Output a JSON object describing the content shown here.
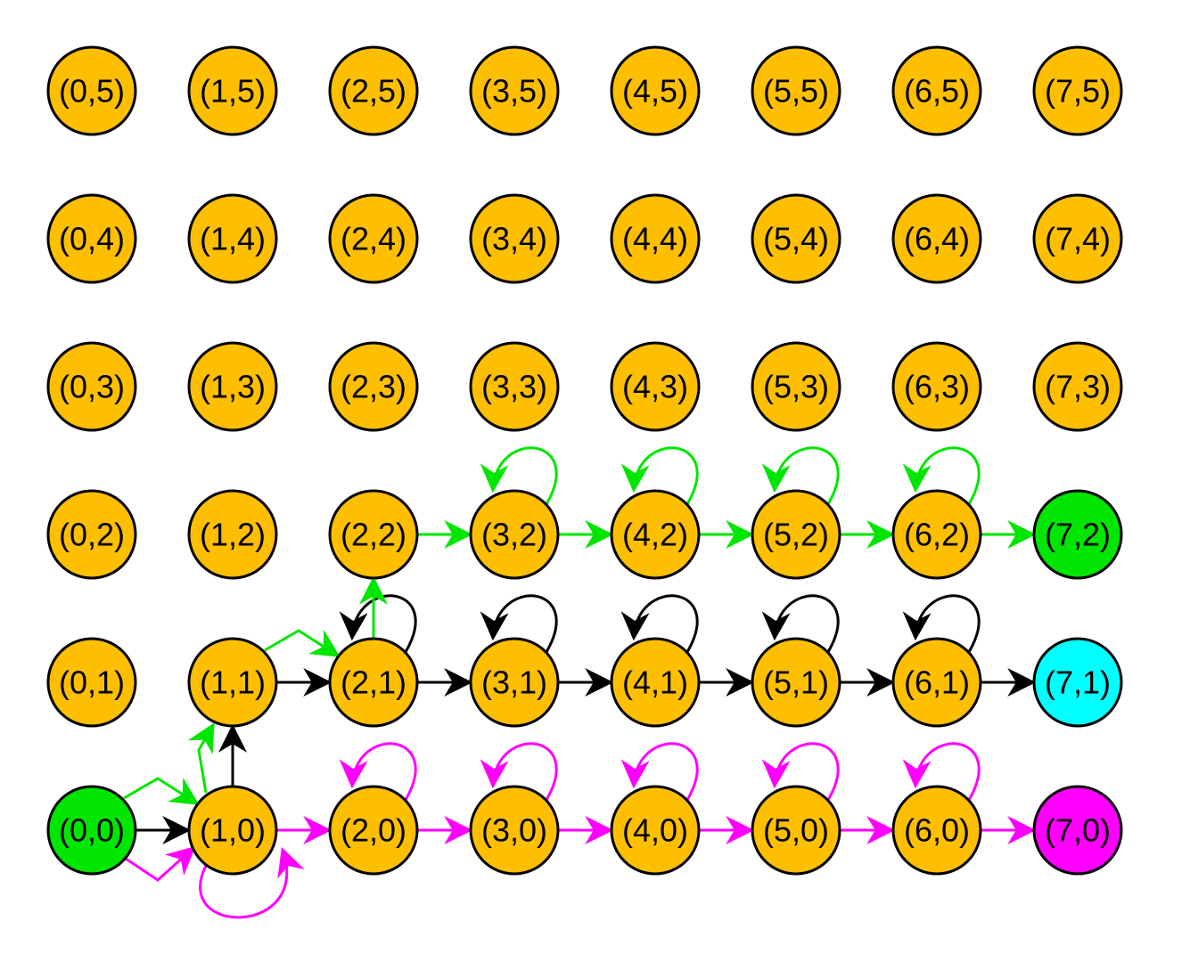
{
  "colors": {
    "node_default": "#FDBF00",
    "start": "#00E600",
    "goal_green": "#00E600",
    "goal_cyan": "#00FFFF",
    "goal_magenta": "#FF00FF",
    "path_black": "#000000",
    "path_green": "#00E600",
    "path_magenta": "#FF00FF"
  },
  "grid": {
    "columns": 8,
    "rows": 6
  },
  "nodes": [
    {
      "id": "0,5",
      "label": "(0,5)",
      "col": 0,
      "row": 5,
      "fill": "node_default"
    },
    {
      "id": "1,5",
      "label": "(1,5)",
      "col": 1,
      "row": 5,
      "fill": "node_default"
    },
    {
      "id": "2,5",
      "label": "(2,5)",
      "col": 2,
      "row": 5,
      "fill": "node_default"
    },
    {
      "id": "3,5",
      "label": "(3,5)",
      "col": 3,
      "row": 5,
      "fill": "node_default"
    },
    {
      "id": "4,5",
      "label": "(4,5)",
      "col": 4,
      "row": 5,
      "fill": "node_default"
    },
    {
      "id": "5,5",
      "label": "(5,5)",
      "col": 5,
      "row": 5,
      "fill": "node_default"
    },
    {
      "id": "6,5",
      "label": "(6,5)",
      "col": 6,
      "row": 5,
      "fill": "node_default"
    },
    {
      "id": "7,5",
      "label": "(7,5)",
      "col": 7,
      "row": 5,
      "fill": "node_default"
    },
    {
      "id": "0,4",
      "label": "(0,4)",
      "col": 0,
      "row": 4,
      "fill": "node_default"
    },
    {
      "id": "1,4",
      "label": "(1,4)",
      "col": 1,
      "row": 4,
      "fill": "node_default"
    },
    {
      "id": "2,4",
      "label": "(2,4)",
      "col": 2,
      "row": 4,
      "fill": "node_default"
    },
    {
      "id": "3,4",
      "label": "(3,4)",
      "col": 3,
      "row": 4,
      "fill": "node_default"
    },
    {
      "id": "4,4",
      "label": "(4,4)",
      "col": 4,
      "row": 4,
      "fill": "node_default"
    },
    {
      "id": "5,4",
      "label": "(5,4)",
      "col": 5,
      "row": 4,
      "fill": "node_default"
    },
    {
      "id": "6,4",
      "label": "(6,4)",
      "col": 6,
      "row": 4,
      "fill": "node_default"
    },
    {
      "id": "7,4",
      "label": "(7,4)",
      "col": 7,
      "row": 4,
      "fill": "node_default"
    },
    {
      "id": "0,3",
      "label": "(0,3)",
      "col": 0,
      "row": 3,
      "fill": "node_default"
    },
    {
      "id": "1,3",
      "label": "(1,3)",
      "col": 1,
      "row": 3,
      "fill": "node_default"
    },
    {
      "id": "2,3",
      "label": "(2,3)",
      "col": 2,
      "row": 3,
      "fill": "node_default"
    },
    {
      "id": "3,3",
      "label": "(3,3)",
      "col": 3,
      "row": 3,
      "fill": "node_default"
    },
    {
      "id": "4,3",
      "label": "(4,3)",
      "col": 4,
      "row": 3,
      "fill": "node_default"
    },
    {
      "id": "5,3",
      "label": "(5,3)",
      "col": 5,
      "row": 3,
      "fill": "node_default"
    },
    {
      "id": "6,3",
      "label": "(6,3)",
      "col": 6,
      "row": 3,
      "fill": "node_default"
    },
    {
      "id": "7,3",
      "label": "(7,3)",
      "col": 7,
      "row": 3,
      "fill": "node_default"
    },
    {
      "id": "0,2",
      "label": "(0,2)",
      "col": 0,
      "row": 2,
      "fill": "node_default"
    },
    {
      "id": "1,2",
      "label": "(1,2)",
      "col": 1,
      "row": 2,
      "fill": "node_default"
    },
    {
      "id": "2,2",
      "label": "(2,2)",
      "col": 2,
      "row": 2,
      "fill": "node_default"
    },
    {
      "id": "3,2",
      "label": "(3,2)",
      "col": 3,
      "row": 2,
      "fill": "node_default"
    },
    {
      "id": "4,2",
      "label": "(4,2)",
      "col": 4,
      "row": 2,
      "fill": "node_default"
    },
    {
      "id": "5,2",
      "label": "(5,2)",
      "col": 5,
      "row": 2,
      "fill": "node_default"
    },
    {
      "id": "6,2",
      "label": "(6,2)",
      "col": 6,
      "row": 2,
      "fill": "node_default"
    },
    {
      "id": "7,2",
      "label": "(7,2)",
      "col": 7,
      "row": 2,
      "fill": "goal_green"
    },
    {
      "id": "0,1",
      "label": "(0,1)",
      "col": 0,
      "row": 1,
      "fill": "node_default"
    },
    {
      "id": "1,1",
      "label": "(1,1)",
      "col": 1,
      "row": 1,
      "fill": "node_default"
    },
    {
      "id": "2,1",
      "label": "(2,1)",
      "col": 2,
      "row": 1,
      "fill": "node_default"
    },
    {
      "id": "3,1",
      "label": "(3,1)",
      "col": 3,
      "row": 1,
      "fill": "node_default"
    },
    {
      "id": "4,1",
      "label": "(4,1)",
      "col": 4,
      "row": 1,
      "fill": "node_default"
    },
    {
      "id": "5,1",
      "label": "(5,1)",
      "col": 5,
      "row": 1,
      "fill": "node_default"
    },
    {
      "id": "6,1",
      "label": "(6,1)",
      "col": 6,
      "row": 1,
      "fill": "node_default"
    },
    {
      "id": "7,1",
      "label": "(7,1)",
      "col": 7,
      "row": 1,
      "fill": "goal_cyan"
    },
    {
      "id": "0,0",
      "label": "(0,0)",
      "col": 0,
      "row": 0,
      "fill": "start"
    },
    {
      "id": "1,0",
      "label": "(1,0)",
      "col": 1,
      "row": 0,
      "fill": "node_default"
    },
    {
      "id": "2,0",
      "label": "(2,0)",
      "col": 2,
      "row": 0,
      "fill": "node_default"
    },
    {
      "id": "3,0",
      "label": "(3,0)",
      "col": 3,
      "row": 0,
      "fill": "node_default"
    },
    {
      "id": "4,0",
      "label": "(4,0)",
      "col": 4,
      "row": 0,
      "fill": "node_default"
    },
    {
      "id": "5,0",
      "label": "(5,0)",
      "col": 5,
      "row": 0,
      "fill": "node_default"
    },
    {
      "id": "6,0",
      "label": "(6,0)",
      "col": 6,
      "row": 0,
      "fill": "node_default"
    },
    {
      "id": "7,0",
      "label": "(7,0)",
      "col": 7,
      "row": 0,
      "fill": "goal_magenta"
    }
  ],
  "edges": [
    {
      "from": "0,0",
      "to": "1,0",
      "color": "path_black",
      "kind": "straight"
    },
    {
      "from": "1,0",
      "to": "1,1",
      "color": "path_black",
      "kind": "straight"
    },
    {
      "from": "1,1",
      "to": "2,1",
      "color": "path_black",
      "kind": "straight"
    },
    {
      "from": "2,1",
      "to": "2,1",
      "color": "path_black",
      "kind": "self"
    },
    {
      "from": "2,1",
      "to": "3,1",
      "color": "path_black",
      "kind": "straight"
    },
    {
      "from": "3,1",
      "to": "3,1",
      "color": "path_black",
      "kind": "self"
    },
    {
      "from": "3,1",
      "to": "4,1",
      "color": "path_black",
      "kind": "straight"
    },
    {
      "from": "4,1",
      "to": "4,1",
      "color": "path_black",
      "kind": "self"
    },
    {
      "from": "4,1",
      "to": "5,1",
      "color": "path_black",
      "kind": "straight"
    },
    {
      "from": "5,1",
      "to": "5,1",
      "color": "path_black",
      "kind": "self"
    },
    {
      "from": "5,1",
      "to": "6,1",
      "color": "path_black",
      "kind": "straight"
    },
    {
      "from": "6,1",
      "to": "6,1",
      "color": "path_black",
      "kind": "self"
    },
    {
      "from": "6,1",
      "to": "7,1",
      "color": "path_black",
      "kind": "straight"
    },
    {
      "from": "0,0",
      "to": "1,0",
      "color": "path_green",
      "kind": "zigzag_up"
    },
    {
      "from": "1,0",
      "to": "1,1",
      "color": "path_green",
      "kind": "zigzag_left"
    },
    {
      "from": "1,1",
      "to": "2,1",
      "color": "path_green",
      "kind": "zigzag_up"
    },
    {
      "from": "2,1",
      "to": "2,2",
      "color": "path_green",
      "kind": "straight"
    },
    {
      "from": "2,2",
      "to": "3,2",
      "color": "path_green",
      "kind": "straight"
    },
    {
      "from": "3,2",
      "to": "3,2",
      "color": "path_green",
      "kind": "self"
    },
    {
      "from": "3,2",
      "to": "4,2",
      "color": "path_green",
      "kind": "straight"
    },
    {
      "from": "4,2",
      "to": "4,2",
      "color": "path_green",
      "kind": "self"
    },
    {
      "from": "4,2",
      "to": "5,2",
      "color": "path_green",
      "kind": "straight"
    },
    {
      "from": "5,2",
      "to": "5,2",
      "color": "path_green",
      "kind": "self"
    },
    {
      "from": "5,2",
      "to": "6,2",
      "color": "path_green",
      "kind": "straight"
    },
    {
      "from": "6,2",
      "to": "6,2",
      "color": "path_green",
      "kind": "self"
    },
    {
      "from": "6,2",
      "to": "7,2",
      "color": "path_green",
      "kind": "straight"
    },
    {
      "from": "0,0",
      "to": "1,0",
      "color": "path_magenta",
      "kind": "zigzag_down"
    },
    {
      "from": "1,0",
      "to": "1,0",
      "color": "path_magenta",
      "kind": "self_below"
    },
    {
      "from": "1,0",
      "to": "2,0",
      "color": "path_magenta",
      "kind": "straight"
    },
    {
      "from": "2,0",
      "to": "2,0",
      "color": "path_magenta",
      "kind": "self"
    },
    {
      "from": "2,0",
      "to": "3,0",
      "color": "path_magenta",
      "kind": "straight"
    },
    {
      "from": "3,0",
      "to": "3,0",
      "color": "path_magenta",
      "kind": "self"
    },
    {
      "from": "3,0",
      "to": "4,0",
      "color": "path_magenta",
      "kind": "straight"
    },
    {
      "from": "4,0",
      "to": "4,0",
      "color": "path_magenta",
      "kind": "self"
    },
    {
      "from": "4,0",
      "to": "5,0",
      "color": "path_magenta",
      "kind": "straight"
    },
    {
      "from": "5,0",
      "to": "5,0",
      "color": "path_magenta",
      "kind": "self"
    },
    {
      "from": "5,0",
      "to": "6,0",
      "color": "path_magenta",
      "kind": "straight"
    },
    {
      "from": "6,0",
      "to": "6,0",
      "color": "path_magenta",
      "kind": "self"
    },
    {
      "from": "6,0",
      "to": "7,0",
      "color": "path_magenta",
      "kind": "straight"
    }
  ]
}
